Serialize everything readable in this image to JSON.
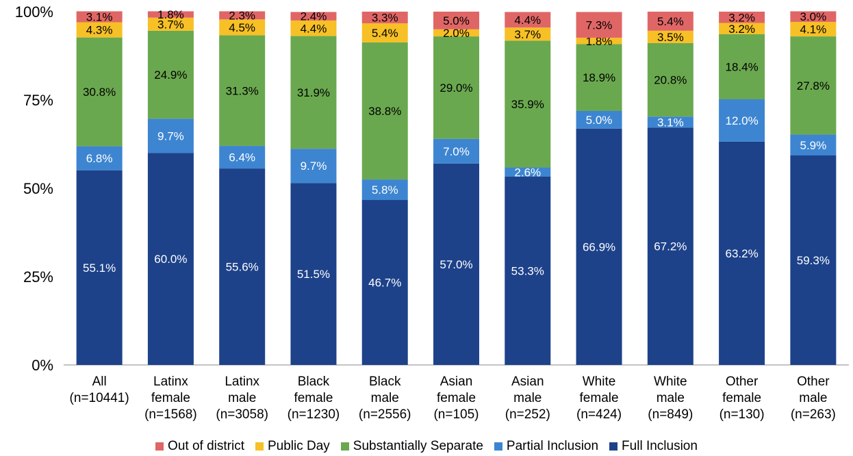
{
  "chart_data": {
    "type": "bar",
    "stacked": true,
    "percent_scale": true,
    "ylim": [
      0,
      100
    ],
    "yticks": [
      "0%",
      "25%",
      "50%",
      "75%",
      "100%"
    ],
    "categories": [
      [
        "All",
        "(n=10441)"
      ],
      [
        "Latinx",
        "female",
        "(n=1568)"
      ],
      [
        "Latinx",
        "male",
        "(n=3058)"
      ],
      [
        "Black",
        "female",
        "(n=1230)"
      ],
      [
        "Black",
        "male",
        "(n=2556)"
      ],
      [
        "Asian",
        "female",
        "(n=105)"
      ],
      [
        "Asian",
        "male",
        "(n=252)"
      ],
      [
        "White",
        "female",
        "(n=424)"
      ],
      [
        "White",
        "male",
        "(n=849)"
      ],
      [
        "Other",
        "female",
        "(n=130)"
      ],
      [
        "Other",
        "male",
        "(n=263)"
      ]
    ],
    "series": [
      {
        "name": "Full Inclusion",
        "color": "#1d428a",
        "label_color": "#ffffff",
        "values": [
          55.1,
          60.0,
          55.6,
          51.5,
          46.7,
          57.0,
          53.3,
          66.9,
          67.2,
          63.2,
          59.3
        ]
      },
      {
        "name": "Partial Inclusion",
        "color": "#3d85d1",
        "label_color": "#ffffff",
        "values": [
          6.8,
          9.7,
          6.4,
          9.7,
          5.8,
          7.0,
          2.6,
          5.0,
          3.1,
          12.0,
          5.9
        ]
      },
      {
        "name": "Substantially Separate",
        "color": "#6aa84f",
        "label_color": "#000000",
        "values": [
          30.8,
          24.9,
          31.3,
          31.9,
          38.8,
          29.0,
          35.9,
          18.9,
          20.8,
          18.4,
          27.8
        ]
      },
      {
        "name": "Public Day",
        "color": "#f6c026",
        "label_color": "#000000",
        "values": [
          4.3,
          3.7,
          4.5,
          4.4,
          5.4,
          2.0,
          3.7,
          1.8,
          3.5,
          3.2,
          4.1
        ]
      },
      {
        "name": "Out of district",
        "color": "#e06666",
        "label_color": "#000000",
        "values": [
          3.1,
          1.8,
          2.3,
          2.4,
          3.3,
          5.0,
          4.4,
          7.3,
          5.4,
          3.2,
          3.0
        ]
      }
    ],
    "legend_order": [
      "Out of district",
      "Public Day",
      "Substantially Separate",
      "Partial Inclusion",
      "Full Inclusion"
    ],
    "legend_position": "bottom",
    "grid": false
  }
}
